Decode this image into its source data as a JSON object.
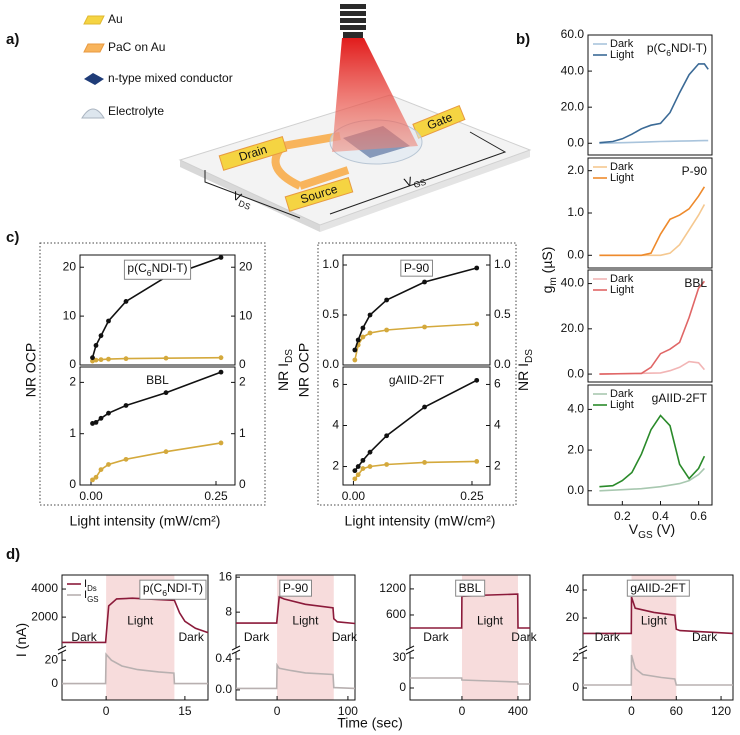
{
  "panel_labels": [
    "a)",
    "b)",
    "c)",
    "d)"
  ],
  "diagram": {
    "legend": [
      "Au",
      "PaC on Au",
      "n-type mixed conductor",
      "Electrolyte"
    ],
    "drain": "Drain",
    "source": "Source",
    "gate": "Gate",
    "vds": [
      "V",
      "DS"
    ],
    "vgs": [
      "V",
      "GS"
    ]
  },
  "chart_data": [
    {
      "type": "line",
      "title": [
        "p(C",
        "6",
        "NDI-T)"
      ],
      "title_color": "#4a7099",
      "title_position": "top-right",
      "ylabel": [
        "g",
        "m",
        " (µS)"
      ],
      "xlim": [
        0.02,
        0.67
      ],
      "ylim": [
        -6.5,
        60
      ],
      "yticks": [
        {
          "value": 0,
          "label": "0.0"
        },
        {
          "value": 20,
          "label": "20.0"
        },
        {
          "value": 40,
          "label": "40.0"
        },
        {
          "value": 60,
          "label": "60.0"
        }
      ],
      "series": [
        {
          "name": "Dark",
          "color": "#a9c4dc",
          "x": [
            0.08,
            0.15,
            0.2,
            0.25,
            0.3,
            0.35,
            0.4,
            0.45,
            0.5,
            0.55,
            0.6,
            0.63,
            0.65
          ],
          "values": [
            0,
            0.2,
            0.3,
            0.5,
            0.6,
            0.8,
            1,
            1.1,
            1.2,
            1.3,
            1.4,
            1.5,
            1.5
          ]
        },
        {
          "name": "Light",
          "color": "#3b6a96",
          "x": [
            0.08,
            0.15,
            0.2,
            0.25,
            0.3,
            0.35,
            0.4,
            0.45,
            0.5,
            0.55,
            0.6,
            0.63,
            0.65
          ],
          "values": [
            0.3,
            1,
            2.5,
            5,
            8,
            10,
            11,
            17,
            28,
            38,
            44,
            44,
            41
          ]
        }
      ]
    },
    {
      "type": "line",
      "title": "P-90",
      "title_color": "#ee8a2c",
      "title_position": "top-right",
      "xlim": [
        0.02,
        0.67
      ],
      "ylim": [
        -0.3,
        2.3
      ],
      "yticks": [
        {
          "value": 0,
          "label": "0.0"
        },
        {
          "value": 1,
          "label": "1.0"
        },
        {
          "value": 2,
          "label": "2.0"
        }
      ],
      "series": [
        {
          "name": "Dark",
          "color": "#f5c890",
          "x": [
            0.08,
            0.4,
            0.45,
            0.5,
            0.55,
            0.6,
            0.63
          ],
          "values": [
            0,
            0,
            0.05,
            0.25,
            0.6,
            0.95,
            1.2
          ]
        },
        {
          "name": "Light",
          "color": "#ee8a2c",
          "x": [
            0.08,
            0.3,
            0.35,
            0.4,
            0.45,
            0.5,
            0.55,
            0.6,
            0.63
          ],
          "values": [
            0,
            0,
            0.05,
            0.5,
            0.85,
            0.95,
            1.1,
            1.4,
            1.62
          ]
        }
      ]
    },
    {
      "type": "line",
      "title": "BBL",
      "title_color": "#e06666",
      "title_position": "top-right",
      "xlim": [
        0.02,
        0.67
      ],
      "ylim": [
        -3.5,
        46
      ],
      "yticks": [
        {
          "value": 0,
          "label": "0.0"
        },
        {
          "value": 20,
          "label": "20.0"
        },
        {
          "value": 40,
          "label": "40.0"
        }
      ],
      "series": [
        {
          "name": "Dark",
          "color": "#f2b5b5",
          "x": [
            0.08,
            0.4,
            0.45,
            0.5,
            0.55,
            0.6,
            0.63
          ],
          "values": [
            0,
            0.5,
            1.5,
            3,
            5.5,
            5,
            2
          ]
        },
        {
          "name": "Light",
          "color": "#e06666",
          "x": [
            0.08,
            0.3,
            0.35,
            0.4,
            0.45,
            0.5,
            0.55,
            0.6,
            0.63
          ],
          "values": [
            0,
            0.3,
            3,
            9,
            11,
            14,
            25,
            38,
            41
          ]
        }
      ]
    },
    {
      "type": "line",
      "title": "gAIID-2FT",
      "title_color": "#2a8a2a",
      "title_position": "top-right",
      "xlabel": [
        "V",
        "GS",
        " (V)"
      ],
      "xlim": [
        0.02,
        0.67
      ],
      "xticks": [
        0.2,
        0.4,
        0.6
      ],
      "ylim": [
        -0.7,
        5.2
      ],
      "yticks": [
        {
          "value": 0,
          "label": "0.0"
        },
        {
          "value": 2,
          "label": "2.0"
        },
        {
          "value": 4,
          "label": "4.0"
        }
      ],
      "series": [
        {
          "name": "Dark",
          "color": "#a8c8b0",
          "x": [
            0.08,
            0.2,
            0.3,
            0.4,
            0.5,
            0.55,
            0.6,
            0.63
          ],
          "values": [
            0,
            0.05,
            0.1,
            0.2,
            0.35,
            0.5,
            0.8,
            1.1
          ]
        },
        {
          "name": "Light",
          "color": "#2a8a2a",
          "x": [
            0.08,
            0.15,
            0.2,
            0.25,
            0.3,
            0.35,
            0.4,
            0.45,
            0.5,
            0.55,
            0.6,
            0.63
          ],
          "values": [
            0.2,
            0.25,
            0.5,
            0.9,
            1.8,
            3.0,
            3.7,
            3.2,
            1.3,
            0.6,
            1.1,
            1.7
          ]
        }
      ]
    },
    {
      "type": "line",
      "title": [
        "p(C",
        "6",
        "NDI-T)"
      ],
      "title_color": "#4a7099",
      "title_position": "top-center",
      "title_box": true,
      "ylabel": "NR OCP",
      "y2label": [
        "NR I",
        "DS"
      ],
      "y_color": "#d4a93c",
      "markers": true,
      "xlim": [
        -0.022,
        0.288
      ],
      "ylim": [
        0,
        22.5
      ],
      "yticks": [
        0,
        10,
        20
      ],
      "y2lim": [
        0,
        22.5
      ],
      "y2ticks": [
        0,
        10,
        20
      ],
      "series": [
        {
          "color": "#d4a93c",
          "x": [
            0.003,
            0.01,
            0.02,
            0.035,
            0.07,
            0.15,
            0.26
          ],
          "values": [
            0.8,
            1,
            1.1,
            1.2,
            1.3,
            1.4,
            1.5
          ]
        },
        {
          "color": "#111111",
          "axis": "y2",
          "x": [
            0.003,
            0.01,
            0.02,
            0.035,
            0.07,
            0.15,
            0.26
          ],
          "values": [
            1.5,
            4,
            6,
            9,
            13,
            18,
            22
          ]
        }
      ]
    },
    {
      "type": "line",
      "title": "BBL",
      "title_color": "#e06666",
      "title_position": "top-center",
      "xlabel": "Light intensity (mW/cm²)",
      "y_color": "#d4a93c",
      "markers": true,
      "xlim": [
        -0.022,
        0.288
      ],
      "xticks": [
        {
          "value": 0,
          "label": "0.00"
        },
        {
          "value": 0.25,
          "label": "0.25"
        }
      ],
      "ylim": [
        0,
        2.3
      ],
      "yticks": [
        0,
        1,
        2
      ],
      "y2lim": [
        0,
        2.3
      ],
      "y2ticks": [
        0,
        1,
        2
      ],
      "series": [
        {
          "color": "#d4a93c",
          "x": [
            0.003,
            0.01,
            0.02,
            0.035,
            0.07,
            0.15,
            0.26
          ],
          "values": [
            0.1,
            0.15,
            0.3,
            0.4,
            0.5,
            0.65,
            0.82
          ]
        },
        {
          "color": "#111111",
          "axis": "y2",
          "x": [
            0.003,
            0.01,
            0.02,
            0.035,
            0.07,
            0.15,
            0.26
          ],
          "values": [
            1.2,
            1.22,
            1.3,
            1.4,
            1.55,
            1.8,
            2.2
          ]
        }
      ]
    },
    {
      "type": "line",
      "title": "P-90",
      "title_color": "#ee8a2c",
      "title_position": "top-center",
      "title_box": true,
      "ylabel": "NR OCP",
      "y2label": [
        "NR I",
        "DS"
      ],
      "y_color": "#d4a93c",
      "markers": true,
      "xlim": [
        -0.022,
        0.288
      ],
      "ylim": [
        0,
        1.1
      ],
      "yticks": [
        {
          "value": 0,
          "label": "0.0"
        },
        {
          "value": 0.5,
          "label": "0.5"
        },
        {
          "value": 1,
          "label": "1.0"
        }
      ],
      "y2lim": [
        0,
        1.1
      ],
      "y2ticks": [
        {
          "value": 0,
          "label": "0.0"
        },
        {
          "value": 0.5,
          "label": "0.5"
        },
        {
          "value": 1,
          "label": "1.0"
        }
      ],
      "series": [
        {
          "color": "#d4a93c",
          "x": [
            0.003,
            0.01,
            0.02,
            0.035,
            0.07,
            0.15,
            0.26
          ],
          "values": [
            0.05,
            0.2,
            0.28,
            0.32,
            0.35,
            0.38,
            0.41
          ]
        },
        {
          "color": "#111111",
          "axis": "y2",
          "x": [
            0.003,
            0.01,
            0.02,
            0.035,
            0.07,
            0.15,
            0.26
          ],
          "values": [
            0.15,
            0.25,
            0.37,
            0.5,
            0.65,
            0.83,
            0.97
          ]
        }
      ]
    },
    {
      "type": "line",
      "title": "gAIID-2FT",
      "title_color": "#2a8a2a",
      "title_position": "top-center",
      "xlabel": "Light intensity (mW/cm²)",
      "y_color": "#d4a93c",
      "markers": true,
      "xlim": [
        -0.022,
        0.288
      ],
      "xticks": [
        {
          "value": 0,
          "label": "0.00"
        },
        {
          "value": 0.25,
          "label": "0.25"
        }
      ],
      "ylim": [
        1.1,
        6.85
      ],
      "yticks": [
        2,
        4,
        6
      ],
      "y2lim": [
        1.1,
        6.85
      ],
      "y2ticks": [
        2,
        4,
        6
      ],
      "series": [
        {
          "color": "#d4a93c",
          "x": [
            0.003,
            0.01,
            0.02,
            0.035,
            0.07,
            0.15,
            0.26
          ],
          "values": [
            1.4,
            1.6,
            1.9,
            2.0,
            2.1,
            2.2,
            2.25
          ]
        },
        {
          "color": "#111111",
          "axis": "y2",
          "x": [
            0.003,
            0.01,
            0.02,
            0.035,
            0.07,
            0.15,
            0.26
          ],
          "values": [
            1.8,
            2.0,
            2.3,
            2.7,
            3.5,
            4.9,
            6.2
          ]
        }
      ]
    },
    {
      "type": "line",
      "title": [
        "p(C",
        "6",
        "NDI-T)"
      ],
      "title_color": "#4a7099",
      "title_position": "top-right",
      "title_box": true,
      "broken_axis": true,
      "ylabel": [
        "I (nA)"
      ],
      "annotations": [
        "Dark",
        "Light",
        "Dark"
      ],
      "light_period": [
        0,
        13
      ],
      "xlim": [
        -8.4,
        19.4
      ],
      "xticks": [
        0,
        15
      ],
      "ylim": [
        -200,
        5000
      ],
      "yticks": [
        2000,
        4000
      ],
      "y2lim": [
        -14,
        27
      ],
      "y2ticks": [
        0,
        20
      ],
      "series": [
        {
          "name": [
            "I",
            "Ds"
          ],
          "color": "#8b1a3a",
          "x": [
            -8.4,
            -0.1,
            0.5,
            2,
            5,
            10,
            13,
            14,
            15,
            17,
            19.4
          ],
          "values": [
            200,
            200,
            2800,
            3300,
            3350,
            3250,
            3200,
            2300,
            1700,
            1200,
            900
          ]
        },
        {
          "name": [
            "I",
            "GS"
          ],
          "color": "#b8b0b0",
          "axis": "y2",
          "x": [
            -8.4,
            -0.1,
            0,
            1,
            3,
            6,
            10,
            12.9,
            13,
            15,
            19.4
          ],
          "values": [
            0,
            0,
            25,
            20,
            15,
            12,
            10,
            9,
            0,
            0,
            0
          ]
        }
      ]
    },
    {
      "type": "line",
      "title": "P-90",
      "title_color": "#ee8a2c",
      "title_position": "top-center",
      "title_box": true,
      "broken_axis": true,
      "xlabel": "Time (sec)",
      "annotations": [
        "Dark",
        "Light",
        "Dark"
      ],
      "light_period": [
        0,
        80
      ],
      "xlim": [
        -58,
        110
      ],
      "xticks": [
        0,
        100
      ],
      "ylim": [
        -0.2,
        16.5
      ],
      "yticks": [
        8,
        16
      ],
      "y2lim": [
        -0.13,
        0.49
      ],
      "y2ticks": [
        {
          "value": 0,
          "label": "0.0"
        },
        {
          "value": 0.4,
          "label": "0.4"
        }
      ],
      "series": [
        {
          "color": "#8b1a3a",
          "x": [
            -58,
            -0.5,
            3,
            10,
            40,
            79,
            80,
            85,
            110
          ],
          "values": [
            5.5,
            5.5,
            11.5,
            11,
            9.8,
            9,
            6.5,
            5.8,
            5.4
          ]
        },
        {
          "color": "#b8b0b0",
          "axis": "y2",
          "x": [
            -58,
            -0.5,
            0,
            3,
            20,
            40,
            79,
            80,
            110
          ],
          "values": [
            0.02,
            0.02,
            0.32,
            0.28,
            0.25,
            0.22,
            0.2,
            0.03,
            0.02
          ]
        }
      ]
    },
    {
      "type": "line",
      "title": "BBL",
      "title_color": "#e06666",
      "title_position": "top-center",
      "title_box": true,
      "broken_axis": true,
      "annotations": [
        "Dark",
        "Light",
        "Dark"
      ],
      "light_period": [
        0,
        400
      ],
      "xlim": [
        -371,
        486
      ],
      "xticks": [
        0,
        400
      ],
      "ylim": [
        -160,
        1520
      ],
      "yticks": [
        600,
        1200
      ],
      "y2lim": [
        -12,
        36
      ],
      "y2ticks": [
        0,
        30
      ],
      "series": [
        {
          "color": "#8b1a3a",
          "x": [
            -371,
            -2,
            0,
            100,
            200,
            398,
            400,
            486
          ],
          "values": [
            300,
            300,
            1030,
            1050,
            1060,
            1080,
            300,
            300
          ]
        },
        {
          "color": "#b8b0b0",
          "axis": "y2",
          "x": [
            -371,
            -2,
            0,
            200,
            398,
            400,
            486
          ],
          "values": [
            10,
            10,
            8,
            7,
            6,
            4,
            4
          ]
        }
      ]
    },
    {
      "type": "line",
      "title": "gAIID-2FT",
      "title_color": "#2a8a2a",
      "title_position": "top-center",
      "title_box": true,
      "broken_axis": true,
      "annotations": [
        "Dark",
        "Light",
        "Dark"
      ],
      "light_period": [
        0,
        60
      ],
      "xlim": [
        -65,
        136
      ],
      "xticks": [
        0,
        60,
        120
      ],
      "ylim": [
        -1.4,
        50.7
      ],
      "yticks": [
        20,
        40
      ],
      "y2lim": [
        -0.8,
        2.4
      ],
      "y2ticks": [
        0,
        2
      ],
      "series": [
        {
          "color": "#8b1a3a",
          "x": [
            -65,
            -0.3,
            0,
            5,
            30,
            58,
            60,
            65,
            136
          ],
          "values": [
            9,
            9,
            35,
            27,
            24,
            22,
            12,
            11,
            9
          ]
        },
        {
          "color": "#b8b0b0",
          "axis": "y2",
          "x": [
            -65,
            -0.3,
            0,
            5,
            15,
            40,
            58,
            60,
            136
          ],
          "values": [
            0.2,
            0.2,
            2.2,
            1.3,
            0.9,
            0.7,
            0.6,
            0.2,
            0.2
          ]
        }
      ]
    }
  ]
}
